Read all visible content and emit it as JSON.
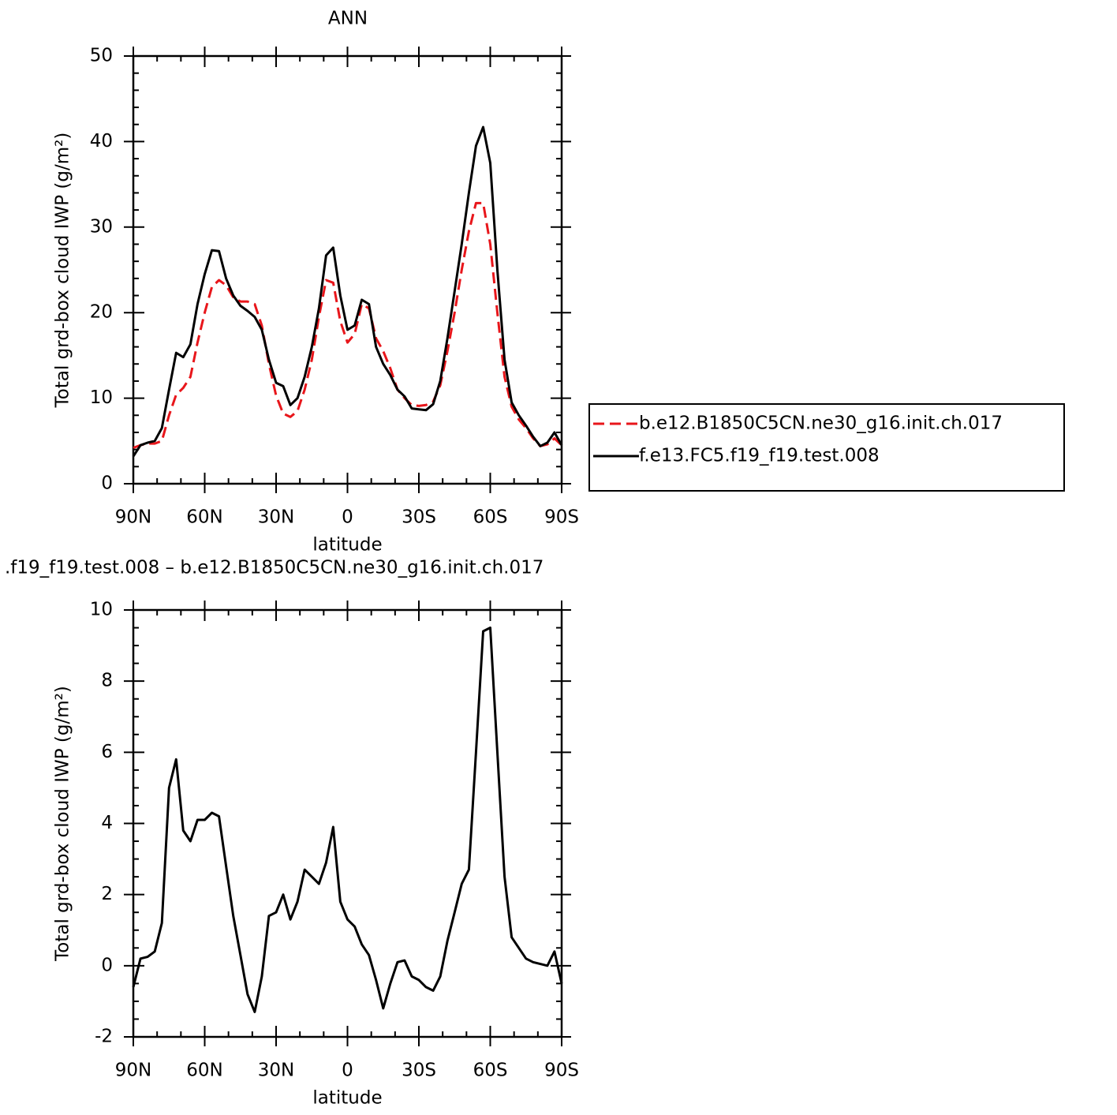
{
  "chart_data": [
    {
      "type": "line",
      "title": "ANN",
      "xlabel": "latitude",
      "ylabel": "Total grd-box cloud IWP (g/m²)",
      "x": [
        90,
        87,
        84,
        81,
        78,
        75,
        72,
        69,
        66,
        63,
        60,
        57,
        54,
        51,
        48,
        45,
        42,
        39,
        36,
        33,
        30,
        27,
        24,
        21,
        18,
        15,
        12,
        9,
        6,
        3,
        0,
        -3,
        -6,
        -9,
        -12,
        -15,
        -18,
        -21,
        -24,
        -27,
        -30,
        -33,
        -36,
        -39,
        -42,
        -45,
        -48,
        -51,
        -54,
        -57,
        -60,
        -63,
        -66,
        -69,
        -72,
        -75,
        -78,
        -81,
        -84,
        -87,
        -90
      ],
      "series": [
        {
          "name": "b.e12.B1850C5CN.ne30_g16.init.ch.017",
          "color": "#e8161b",
          "linestyle": "dashed",
          "values": [
            4.2,
            4.5,
            4.7,
            4.7,
            5.0,
            8.0,
            10.4,
            11.2,
            12.5,
            16.5,
            20,
            23,
            23.8,
            23.2,
            21.8,
            21.3,
            21.3,
            21,
            18.5,
            14,
            10.3,
            8.2,
            7.8,
            8.5,
            11,
            14.5,
            19.5,
            23.8,
            23.5,
            19,
            16.5,
            17.5,
            21,
            20.5,
            17,
            15.5,
            13.5,
            11,
            10,
            9.2,
            9.1,
            9.2,
            9.6,
            11.5,
            15.5,
            20,
            25,
            29.5,
            32.8,
            32.8,
            28,
            20,
            12.5,
            9,
            7.5,
            6.5,
            5.3,
            4.4,
            4.6,
            5.3,
            4.5
          ]
        },
        {
          "name": "f.e13.FC5.f19_f19.test.008",
          "color": "#000000",
          "linestyle": "solid",
          "values": [
            3.2,
            4.5,
            4.8,
            5.0,
            6.5,
            11,
            15.3,
            14.8,
            16.3,
            21,
            24.5,
            27.3,
            27.2,
            24,
            22,
            20.8,
            20.2,
            19.5,
            18,
            14.5,
            11.8,
            11.4,
            9.2,
            10,
            12.5,
            16,
            20.5,
            26.7,
            27.6,
            22,
            18,
            18.5,
            21.5,
            21,
            16,
            14,
            12.7,
            11,
            10.2,
            8.8,
            8.7,
            8.6,
            9.3,
            12,
            17,
            22.5,
            28,
            34,
            39.5,
            41.7,
            37.5,
            25,
            14.5,
            9.5,
            8,
            6.8,
            5.5,
            4.4,
            4.8,
            6,
            4.5
          ]
        }
      ],
      "xlim": [
        90,
        -90
      ],
      "ylim": [
        0,
        50
      ],
      "xticks": [
        {
          "value": 90,
          "label": "90N"
        },
        {
          "value": 60,
          "label": "60N"
        },
        {
          "value": 30,
          "label": "30N"
        },
        0,
        {
          "value": -30,
          "label": "30S"
        },
        {
          "value": -60,
          "label": "60S"
        },
        {
          "value": -90,
          "label": "90S"
        }
      ],
      "yticks": [
        0,
        10,
        20,
        30,
        40,
        50
      ],
      "legend": "right"
    },
    {
      "type": "line",
      "title": ".f19_f19.test.008 – b.e12.B1850C5CN.ne30_g16.init.ch.017",
      "xlabel": "latitude",
      "ylabel": "Total grd-box cloud IWP (g/m²)",
      "x": [
        90,
        87,
        84,
        81,
        78,
        75,
        72,
        69,
        66,
        63,
        60,
        57,
        54,
        51,
        48,
        45,
        42,
        39,
        36,
        33,
        30,
        27,
        24,
        21,
        18,
        15,
        12,
        9,
        6,
        3,
        0,
        -3,
        -6,
        -9,
        -12,
        -15,
        -18,
        -21,
        -24,
        -27,
        -30,
        -33,
        -36,
        -39,
        -42,
        -45,
        -48,
        -51,
        -54,
        -57,
        -60,
        -63,
        -66,
        -69,
        -72,
        -75,
        -78,
        -81,
        -84,
        -87,
        -90
      ],
      "series": [
        {
          "color": "#000000",
          "linestyle": "solid",
          "values": [
            -0.6,
            0.2,
            0.25,
            0.4,
            1.2,
            5.0,
            5.8,
            3.8,
            3.5,
            4.1,
            4.1,
            4.3,
            4.2,
            2.8,
            1.4,
            0.3,
            -0.8,
            -1.3,
            -0.3,
            1.4,
            1.5,
            2.0,
            1.3,
            1.8,
            2.7,
            2.5,
            2.3,
            2.9,
            3.9,
            1.8,
            1.3,
            1.1,
            0.6,
            0.3,
            -0.4,
            -1.2,
            -0.5,
            0.1,
            0.15,
            -0.3,
            -0.4,
            -0.6,
            -0.7,
            -0.3,
            0.7,
            1.5,
            2.3,
            2.7,
            6.0,
            9.4,
            9.5,
            6.0,
            2.5,
            0.8,
            0.5,
            0.2,
            0.1,
            0.05,
            0.0,
            0.4,
            -0.5
          ]
        }
      ],
      "xlim": [
        90,
        -90
      ],
      "ylim": [
        -2,
        10
      ],
      "xticks": [
        {
          "value": 90,
          "label": "90N"
        },
        {
          "value": 60,
          "label": "60N"
        },
        {
          "value": 30,
          "label": "30N"
        },
        0,
        {
          "value": -30,
          "label": "30S"
        },
        {
          "value": -60,
          "label": "60S"
        },
        {
          "value": -90,
          "label": "90S"
        }
      ],
      "yticks": [
        -2,
        0,
        2,
        4,
        6,
        8,
        10
      ]
    }
  ]
}
